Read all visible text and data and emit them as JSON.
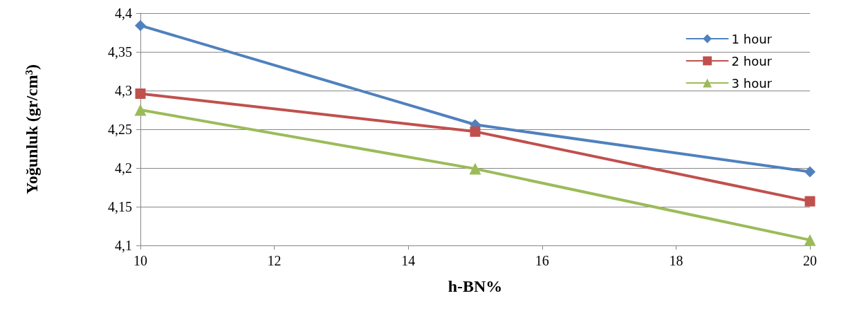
{
  "chart_data": {
    "type": "line",
    "xlabel": "h-BN%",
    "ylabel": "Yoğunluk (gr/cm³)",
    "x": [
      10,
      15,
      20
    ],
    "series": [
      {
        "name": "1 hour",
        "color": "#4f81bd",
        "marker": "diamond",
        "values": [
          4.384,
          4.256,
          4.195
        ]
      },
      {
        "name": "2 hour",
        "color": "#c0504d",
        "marker": "square",
        "values": [
          4.296,
          4.247,
          4.157
        ]
      },
      {
        "name": "3 hour",
        "color": "#9bbb59",
        "marker": "triangle",
        "values": [
          4.275,
          4.199,
          4.107
        ]
      }
    ],
    "xlim": [
      10,
      20
    ],
    "xticks": [
      10,
      12,
      14,
      16,
      18,
      20
    ],
    "ylim": [
      4.1,
      4.4
    ],
    "yticks": [
      {
        "value": 4.1,
        "label": "4,1"
      },
      {
        "value": 4.15,
        "label": "4,15"
      },
      {
        "value": 4.2,
        "label": "4,2"
      },
      {
        "value": 4.25,
        "label": "4,25"
      },
      {
        "value": 4.3,
        "label": "4,3"
      },
      {
        "value": 4.35,
        "label": "4,35"
      },
      {
        "value": 4.4,
        "label": "4,4"
      }
    ],
    "grid": "y",
    "legend": "top right",
    "line_style": "solid"
  }
}
